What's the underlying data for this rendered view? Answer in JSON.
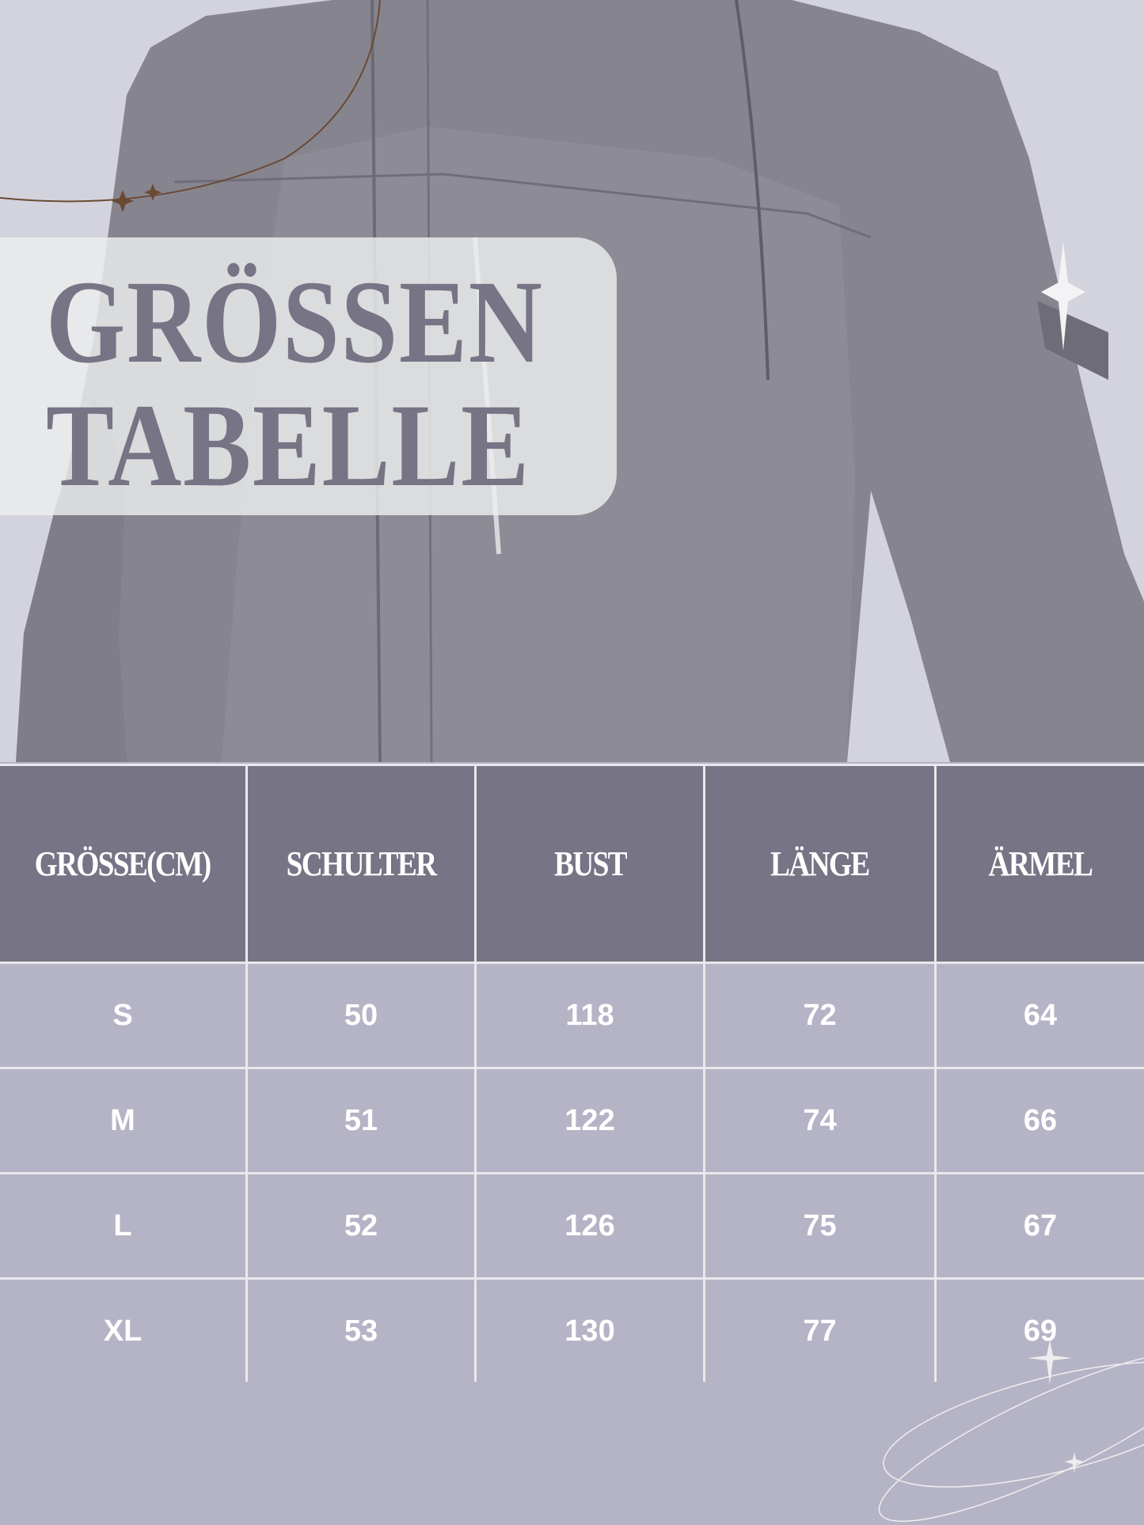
{
  "title": {
    "line1": "GRÖSSEN",
    "line2": "TABELLE"
  },
  "colors": {
    "background": "#d3d3de",
    "header_cell": "#767485",
    "body_cell": "#b5b4c6",
    "grid_line": "#e9e9ec",
    "title_text": "#767485",
    "accent_line": "#6b4a34"
  },
  "table": {
    "headers": [
      "GRÖSSE(CM)",
      "SCHULTER",
      "BUST",
      "LÄNGE",
      "ÄRMEL"
    ],
    "rows": [
      [
        "S",
        "50",
        "118",
        "72",
        "64"
      ],
      [
        "M",
        "51",
        "122",
        "74",
        "66"
      ],
      [
        "L",
        "52",
        "126",
        "75",
        "67"
      ],
      [
        "XL",
        "53",
        "130",
        "77",
        "69"
      ]
    ]
  },
  "icons": [
    "sparkle-icon",
    "orbit-decoration"
  ]
}
